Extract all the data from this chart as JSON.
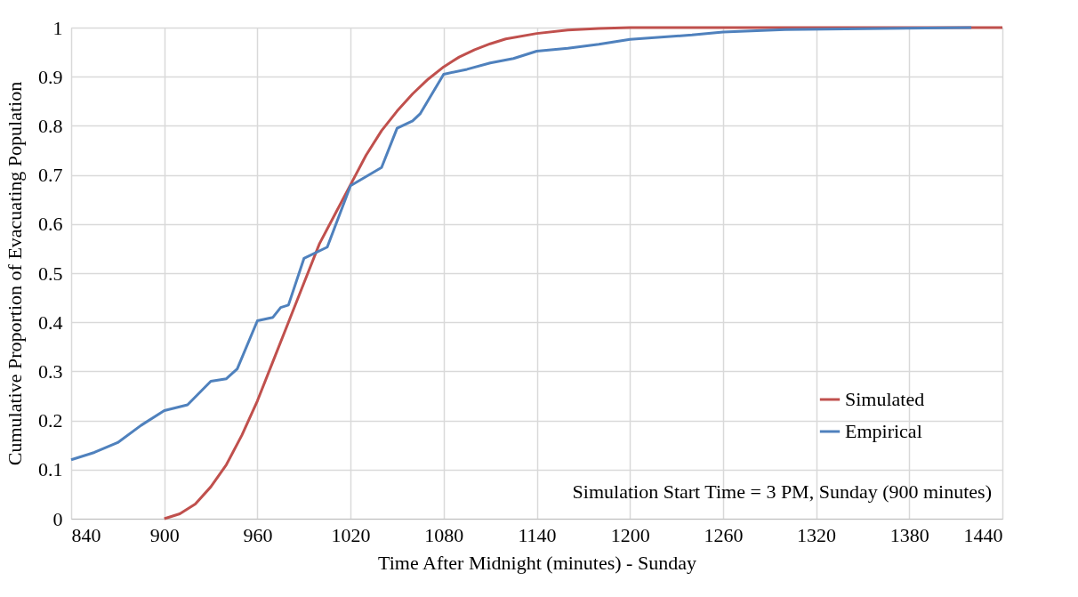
{
  "chart_data": {
    "type": "line",
    "xlabel": "Time After Midnight (minutes) - Sunday",
    "ylabel": "Cumulative Proportion of Evacuating Population",
    "xlim": [
      840,
      1440
    ],
    "xticks": [
      840,
      900,
      960,
      1020,
      1080,
      1140,
      1200,
      1260,
      1320,
      1380,
      1440
    ],
    "ylim": [
      0,
      1
    ],
    "yticks": [
      0,
      0.1,
      0.2,
      0.3,
      0.4,
      0.5,
      0.6,
      0.7,
      0.8,
      0.9,
      1
    ],
    "grid": true,
    "legend": "bottom right",
    "marker": "none",
    "line_style": "solid",
    "annotations": [
      "Simulation Start Time = 3 PM, Sunday (900 minutes)"
    ],
    "series": [
      {
        "name": "Simulated",
        "color": "#c0504d",
        "x": [
          900,
          910,
          920,
          930,
          940,
          950,
          960,
          970,
          980,
          990,
          1000,
          1010,
          1020,
          1030,
          1040,
          1050,
          1060,
          1070,
          1080,
          1090,
          1100,
          1110,
          1120,
          1140,
          1160,
          1180,
          1200,
          1440
        ],
        "values": [
          0,
          0.01,
          0.03,
          0.065,
          0.11,
          0.17,
          0.24,
          0.32,
          0.4,
          0.48,
          0.56,
          0.62,
          0.68,
          0.74,
          0.79,
          0.83,
          0.865,
          0.895,
          0.92,
          0.94,
          0.955,
          0.967,
          0.977,
          0.988,
          0.995,
          0.998,
          1,
          1
        ]
      },
      {
        "name": "Empirical",
        "color": "#4f81bd",
        "x": [
          840,
          855,
          870,
          885,
          900,
          915,
          930,
          940,
          947,
          960,
          970,
          975,
          980,
          990,
          1005,
          1020,
          1040,
          1050,
          1060,
          1065,
          1080,
          1095,
          1110,
          1125,
          1140,
          1160,
          1180,
          1200,
          1240,
          1260,
          1300,
          1420
        ],
        "values": [
          0.12,
          0.135,
          0.155,
          0.19,
          0.22,
          0.232,
          0.28,
          0.285,
          0.305,
          0.403,
          0.41,
          0.43,
          0.435,
          0.53,
          0.553,
          0.678,
          0.715,
          0.795,
          0.81,
          0.825,
          0.905,
          0.915,
          0.928,
          0.937,
          0.952,
          0.958,
          0.966,
          0.976,
          0.985,
          0.991,
          0.996,
          1
        ]
      }
    ]
  }
}
